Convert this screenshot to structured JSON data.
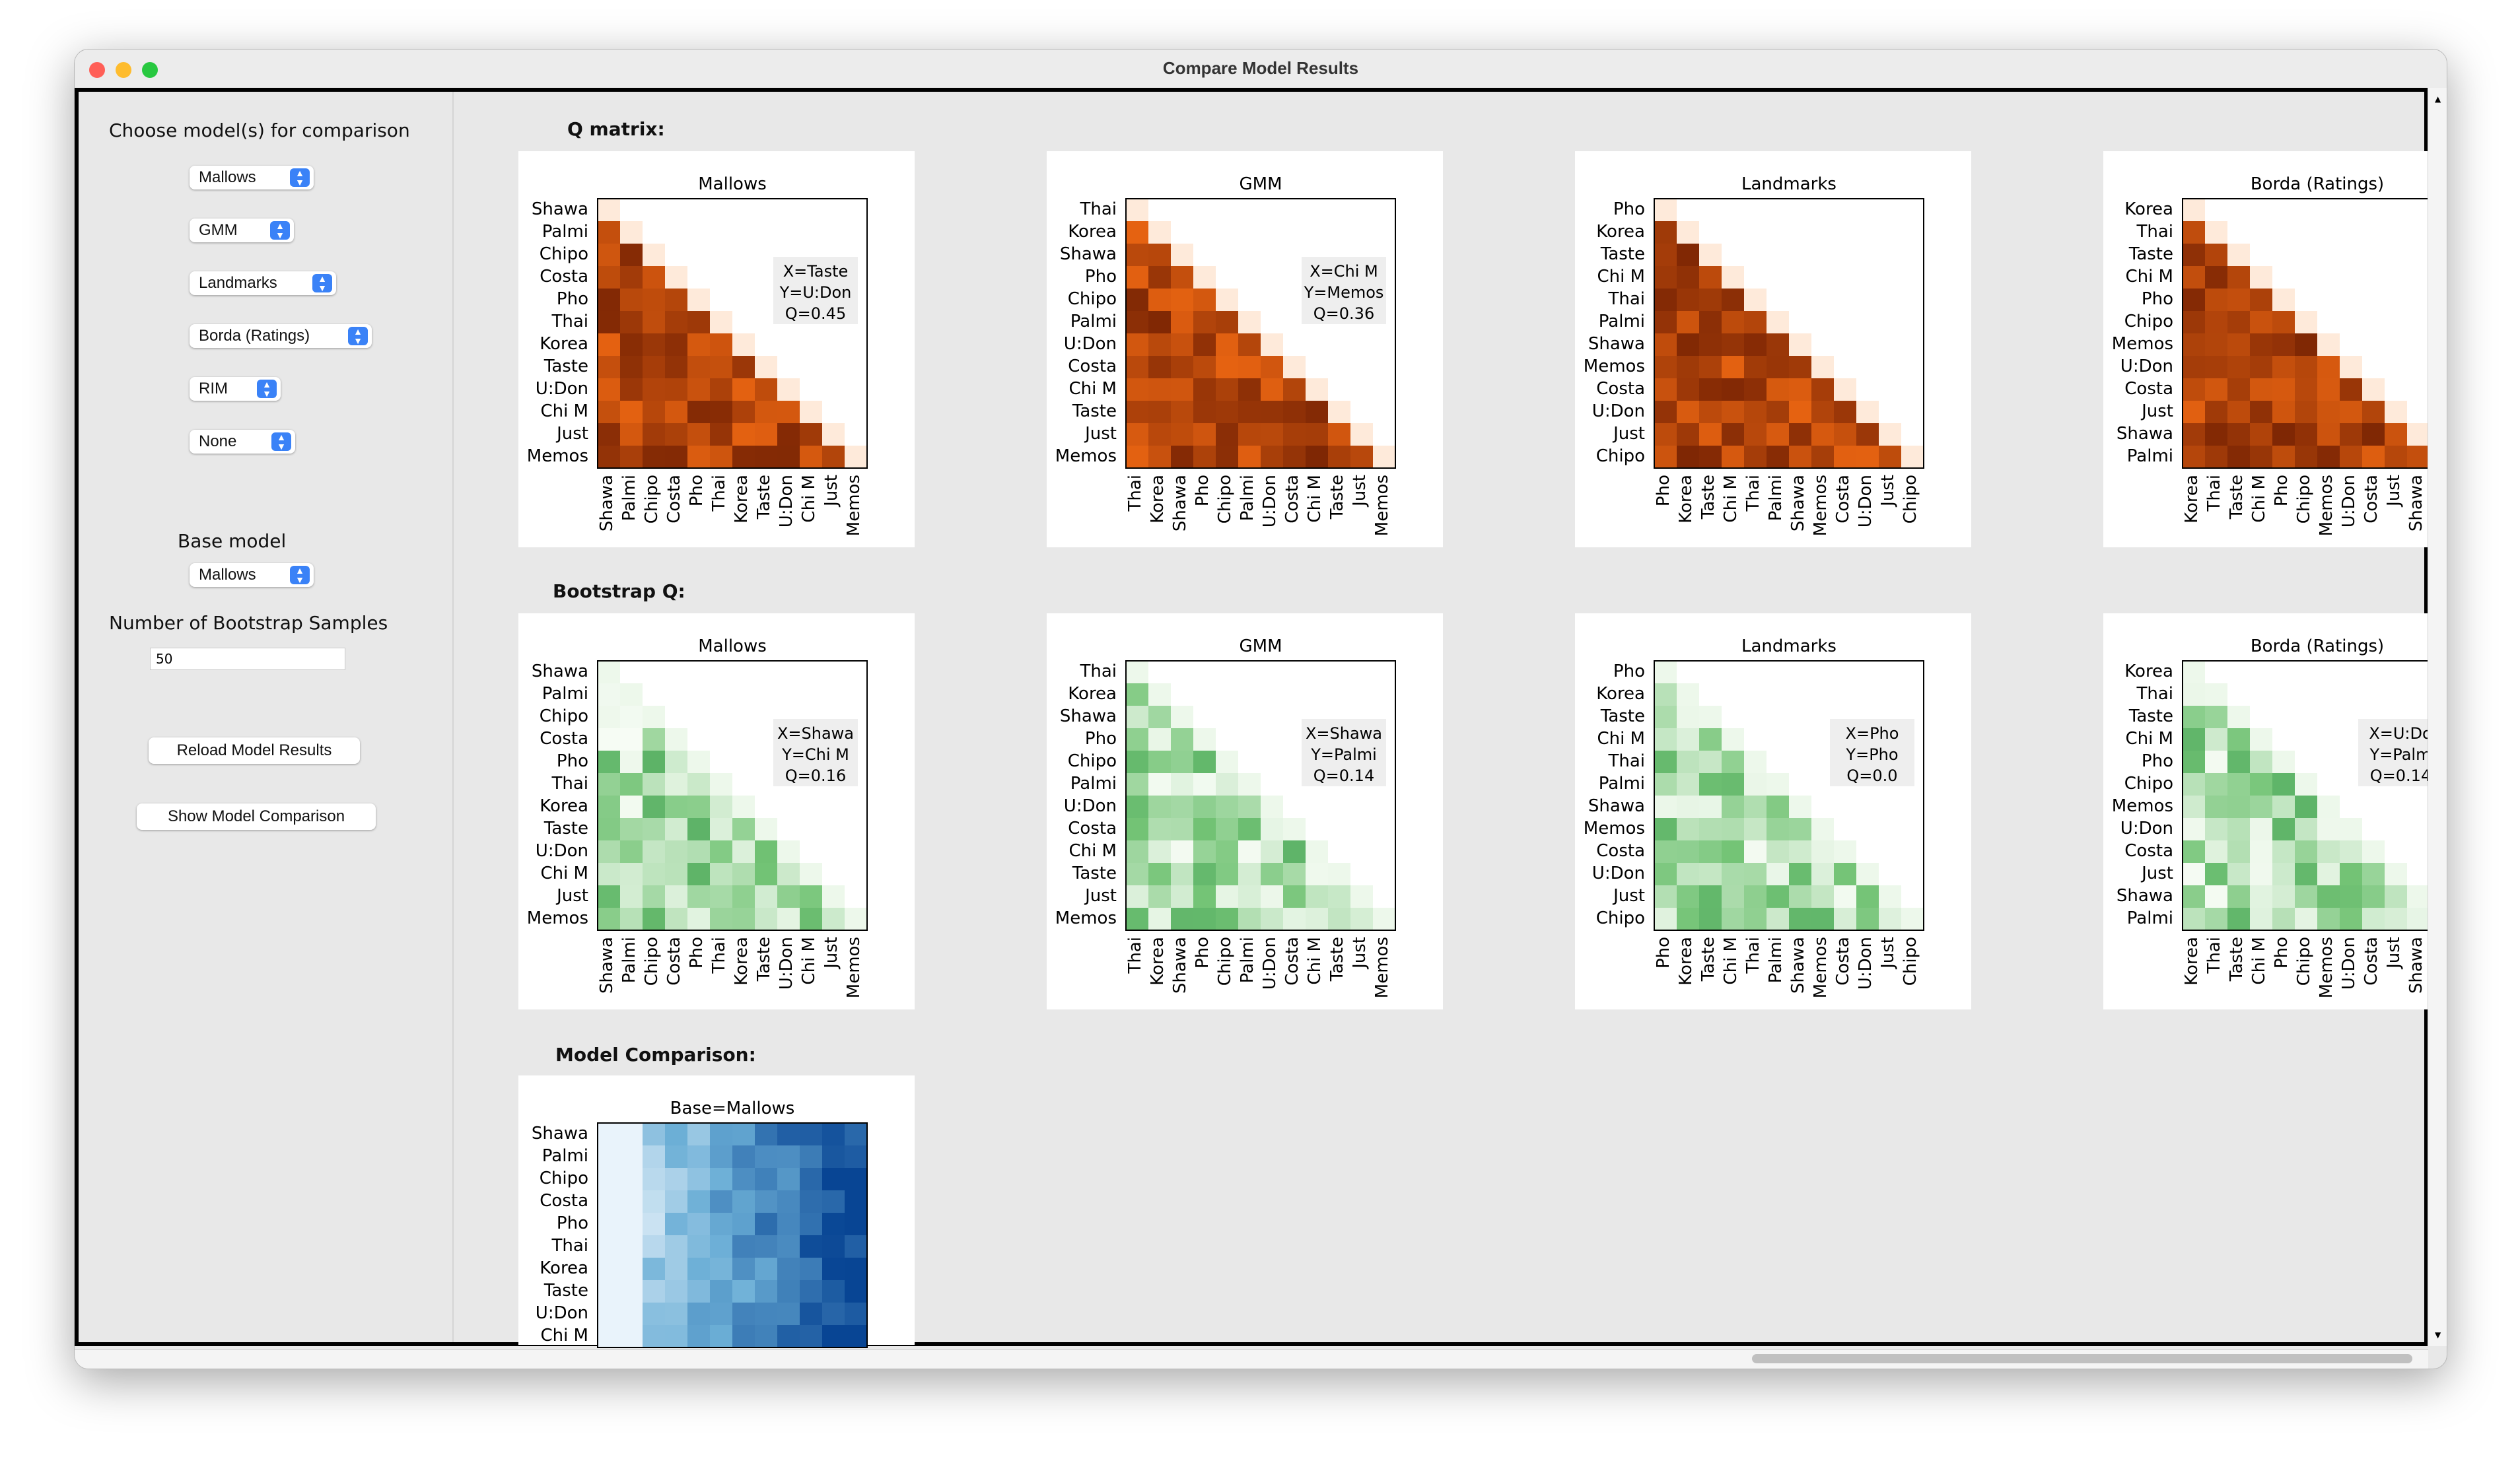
{
  "window": {
    "title": "Compare Model Results"
  },
  "sidebar": {
    "choose_label": "Choose model(s) for comparison",
    "selects": [
      "Mallows",
      "GMM",
      "Landmarks",
      "Borda (Ratings)",
      "RIM",
      "None"
    ],
    "base_model_label": "Base model",
    "base_model_value": "Mallows",
    "bootstrap_label": "Number of Bootstrap Samples",
    "bootstrap_value": "50",
    "reload_button": "Reload Model Results",
    "show_button": "Show Model Comparison"
  },
  "sections": {
    "q_matrix": "Q matrix:",
    "bootstrap": "Bootstrap Q:",
    "comparison": "Model Comparison:"
  },
  "colors": {
    "q": "orange-red",
    "bootstrap": "green",
    "comparison": "blue"
  },
  "chart_data": [
    {
      "type": "heatmap",
      "title": "Mallows",
      "row": "Q matrix",
      "labels": [
        "Shawa",
        "Palmi",
        "Chipo",
        "Costa",
        "Pho",
        "Thai",
        "Korea",
        "Taste",
        "U:Don",
        "Chi M",
        "Just",
        "Memos"
      ],
      "annotation": [
        "X=Taste",
        "Y=U:Don",
        "Q=0.45"
      ]
    },
    {
      "type": "heatmap",
      "title": "GMM",
      "row": "Q matrix",
      "labels": [
        "Thai",
        "Korea",
        "Shawa",
        "Pho",
        "Chipo",
        "Palmi",
        "U:Don",
        "Costa",
        "Chi M",
        "Taste",
        "Just",
        "Memos"
      ],
      "annotation": [
        "X=Chi M",
        "Y=Memos",
        "Q=0.36"
      ]
    },
    {
      "type": "heatmap",
      "title": "Landmarks",
      "row": "Q matrix",
      "labels": [
        "Pho",
        "Korea",
        "Taste",
        "Chi M",
        "Thai",
        "Palmi",
        "Shawa",
        "Memos",
        "Costa",
        "U:Don",
        "Just",
        "Chipo"
      ],
      "annotation": []
    },
    {
      "type": "heatmap",
      "title": "Borda (Ratings)",
      "row": "Q matrix",
      "labels": [
        "Korea",
        "Thai",
        "Taste",
        "Chi M",
        "Pho",
        "Chipo",
        "Memos",
        "U:Don",
        "Costa",
        "Just",
        "Shawa",
        "Palmi"
      ],
      "annotation": []
    },
    {
      "type": "heatmap",
      "title": "Mallows",
      "row": "Bootstrap Q",
      "labels": [
        "Shawa",
        "Palmi",
        "Chipo",
        "Costa",
        "Pho",
        "Thai",
        "Korea",
        "Taste",
        "U:Don",
        "Chi M",
        "Just",
        "Memos"
      ],
      "annotation": [
        "X=Shawa",
        "Y=Chi M",
        "Q=0.16"
      ]
    },
    {
      "type": "heatmap",
      "title": "GMM",
      "row": "Bootstrap Q",
      "labels": [
        "Thai",
        "Korea",
        "Shawa",
        "Pho",
        "Chipo",
        "Palmi",
        "U:Don",
        "Costa",
        "Chi M",
        "Taste",
        "Just",
        "Memos"
      ],
      "annotation": [
        "X=Shawa",
        "Y=Palmi",
        "Q=0.14"
      ]
    },
    {
      "type": "heatmap",
      "title": "Landmarks",
      "row": "Bootstrap Q",
      "labels": [
        "Pho",
        "Korea",
        "Taste",
        "Chi M",
        "Thai",
        "Palmi",
        "Shawa",
        "Memos",
        "Costa",
        "U:Don",
        "Just",
        "Chipo"
      ],
      "annotation": [
        "X=Pho",
        "Y=Pho",
        "Q=0.0"
      ]
    },
    {
      "type": "heatmap",
      "title": "Borda (Ratings)",
      "row": "Bootstrap Q",
      "labels": [
        "Korea",
        "Thai",
        "Taste",
        "Chi M",
        "Pho",
        "Chipo",
        "Memos",
        "U:Don",
        "Costa",
        "Just",
        "Shawa",
        "Palmi"
      ],
      "annotation": [
        "X=U:Do",
        "Y=Palm",
        "Q=0.14"
      ]
    },
    {
      "type": "heatmap",
      "title": "Base=Mallows",
      "row": "Model Comparison",
      "labels": [
        "Shawa",
        "Palmi",
        "Chipo",
        "Costa",
        "Pho",
        "Thai",
        "Korea",
        "Taste",
        "U:Don",
        "Chi M"
      ],
      "annotation": []
    }
  ]
}
